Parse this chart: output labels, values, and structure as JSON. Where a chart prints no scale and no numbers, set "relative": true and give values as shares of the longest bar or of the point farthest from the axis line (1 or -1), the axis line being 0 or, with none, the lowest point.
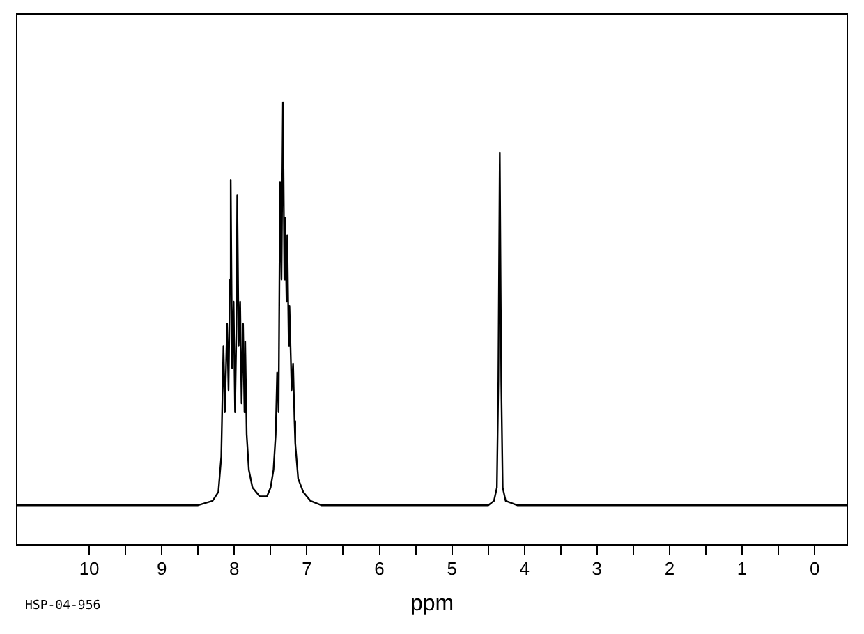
{
  "chart_data": {
    "type": "line",
    "relative": true,
    "xlabel": "ppm",
    "annotations": [
      "HSP-04-956"
    ],
    "x": [
      11,
      10,
      9,
      8.5,
      8.3,
      8.22,
      8.18,
      8.15,
      8.13,
      8.1,
      8.08,
      8.06,
      8.05,
      8.03,
      8.01,
      7.99,
      7.97,
      7.96,
      7.94,
      7.92,
      7.9,
      7.88,
      7.86,
      7.85,
      7.83,
      7.8,
      7.75,
      7.65,
      7.55,
      7.5,
      7.46,
      7.43,
      7.41,
      7.39,
      7.37,
      7.35,
      7.33,
      7.31,
      7.3,
      7.28,
      7.27,
      7.25,
      7.24,
      7.21,
      7.19,
      7.17,
      7.16,
      7.12,
      7.05,
      6.95,
      6.8,
      6,
      5,
      4.5,
      4.42,
      4.38,
      4.36,
      4.34,
      4.32,
      4.3,
      4.26,
      4.1,
      3,
      2,
      1,
      0,
      -0.45
    ],
    "series": [
      {
        "color": "#000000",
        "values": [
          0.09,
          0.09,
          0.09,
          0.09,
          0.1,
          0.12,
          0.2,
          0.45,
          0.3,
          0.5,
          0.35,
          0.6,
          0.825,
          0.4,
          0.55,
          0.3,
          0.5,
          0.79,
          0.45,
          0.55,
          0.32,
          0.5,
          0.3,
          0.46,
          0.25,
          0.17,
          0.13,
          0.11,
          0.11,
          0.13,
          0.17,
          0.25,
          0.39,
          0.3,
          0.82,
          0.6,
          1,
          0.6,
          0.74,
          0.55,
          0.7,
          0.45,
          0.54,
          0.35,
          0.41,
          0.28,
          0.23,
          0.15,
          0.12,
          0.1,
          0.09,
          0.09,
          0.09,
          0.09,
          0.1,
          0.13,
          0.37,
          0.887,
          0.37,
          0.13,
          0.1,
          0.09,
          0.09,
          0.09,
          0.09,
          0.09,
          0.09
        ]
      }
    ],
    "xlim": [
      11,
      -0.45
    ],
    "xticks": [
      10,
      {
        "value": 9.5,
        "label": null
      },
      9,
      {
        "value": 8.5,
        "label": null
      },
      8,
      {
        "value": 7.5,
        "label": null
      },
      7,
      {
        "value": 6.5,
        "label": null
      },
      6,
      {
        "value": 5.5,
        "label": null
      },
      5,
      {
        "value": 4.5,
        "label": null
      },
      4,
      {
        "value": 3.5,
        "label": null
      },
      3,
      {
        "value": 2.5,
        "label": null
      },
      2,
      {
        "value": 1.5,
        "label": null
      },
      1,
      {
        "value": 0.5,
        "label": null
      },
      0
    ]
  }
}
